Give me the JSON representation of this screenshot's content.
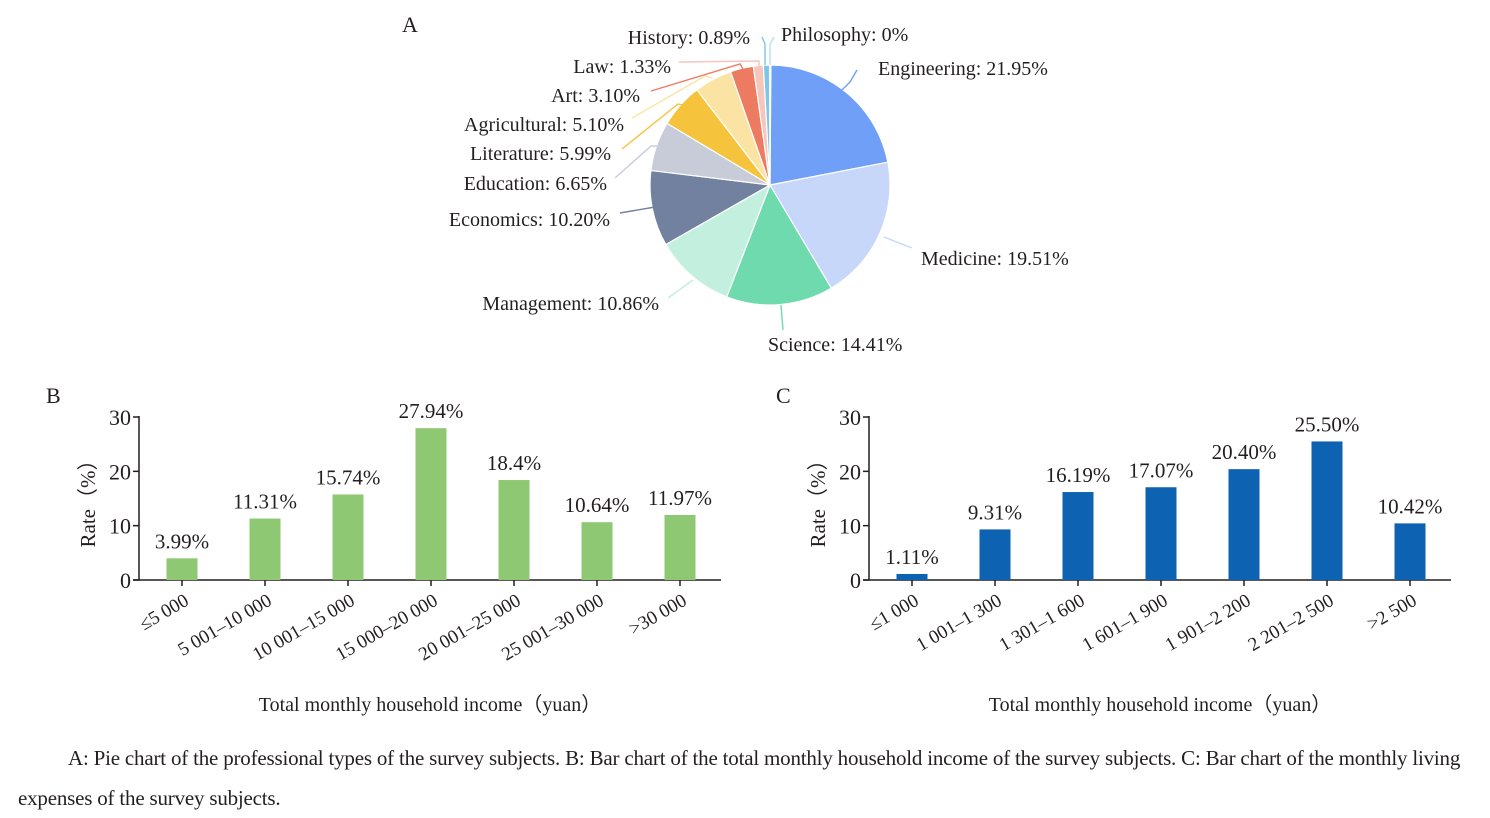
{
  "figure": {
    "panel_labels": [
      "A",
      "B",
      "C"
    ],
    "caption": "A: Pie chart of the professional types of the survey subjects. B: Bar chart of the total monthly household income of the survey subjects. C: Bar chart of the monthly living expenses of the survey subjects."
  },
  "chart_data": [
    {
      "id": "A",
      "type": "pie",
      "title": "",
      "slices": [
        {
          "label": "Engineering",
          "value": 21.95,
          "text": "Engineering: 21.95%",
          "color": "#6f9ff7"
        },
        {
          "label": "Medicine",
          "value": 19.51,
          "text": "Medicine: 19.51%",
          "color": "#c6d7fa"
        },
        {
          "label": "Science",
          "value": 14.41,
          "text": "Science: 14.41%",
          "color": "#6fdaae"
        },
        {
          "label": "Management",
          "value": 10.86,
          "text": "Management: 10.86%",
          "color": "#c3efdf"
        },
        {
          "label": "Economics",
          "value": 10.2,
          "text": "Economics: 10.20%",
          "color": "#72819f"
        },
        {
          "label": "Education",
          "value": 6.65,
          "text": "Education: 6.65%",
          "color": "#c8ccd8"
        },
        {
          "label": "Literature",
          "value": 5.99,
          "text": "Literature: 5.99%",
          "color": "#f6c33d"
        },
        {
          "label": "Agricultural",
          "value": 5.1,
          "text": "Agricultural: 5.10%",
          "color": "#fbe4a3"
        },
        {
          "label": "Art",
          "value": 3.1,
          "text": "Art: 3.10%",
          "color": "#ed7b62"
        },
        {
          "label": "Law",
          "value": 1.33,
          "text": "Law: 1.33%",
          "color": "#f6c5bc"
        },
        {
          "label": "History",
          "value": 0.89,
          "text": "History: 0.89%",
          "color": "#7ec6e6"
        },
        {
          "label": "Philosophy",
          "value": 0,
          "text": "Philosophy: 0%",
          "color": "#b7e0f1"
        }
      ]
    },
    {
      "id": "B",
      "type": "bar",
      "title": "",
      "xlabel": "Total monthly household income（yuan）",
      "ylabel": "Rate（%）",
      "ylim": [
        0,
        30
      ],
      "yticks": [
        0,
        10,
        20,
        30
      ],
      "bar_color": "#8fc872",
      "categories": [
        "≤5 000",
        "5 001–10 000",
        "10 001–15 000",
        "15 000–20 000",
        "20 001–25 000",
        "25 001–30 000",
        ">30 000"
      ],
      "values": [
        3.99,
        11.31,
        15.74,
        27.94,
        18.4,
        10.64,
        11.97
      ],
      "value_labels": [
        "3.99%",
        "11.31%",
        "15.74%",
        "27.94%",
        "18.4%",
        "10.64%",
        "11.97%"
      ]
    },
    {
      "id": "C",
      "type": "bar",
      "title": "",
      "xlabel": "Total monthly household income（yuan）",
      "ylabel": "Rate（%）",
      "ylim": [
        0,
        30
      ],
      "yticks": [
        0,
        10,
        20,
        30
      ],
      "bar_color": "#0e62b2",
      "categories": [
        "≤1 000",
        "1 001–1 300",
        "1 301–1 600",
        "1 601–1 900",
        "1 901–2 200",
        "2 201–2 500",
        ">2 500"
      ],
      "values": [
        1.11,
        9.31,
        16.19,
        17.07,
        20.4,
        25.5,
        10.42
      ],
      "value_labels": [
        "1.11%",
        "9.31%",
        "16.19%",
        "17.07%",
        "20.40%",
        "25.50%",
        "10.42%"
      ]
    }
  ]
}
